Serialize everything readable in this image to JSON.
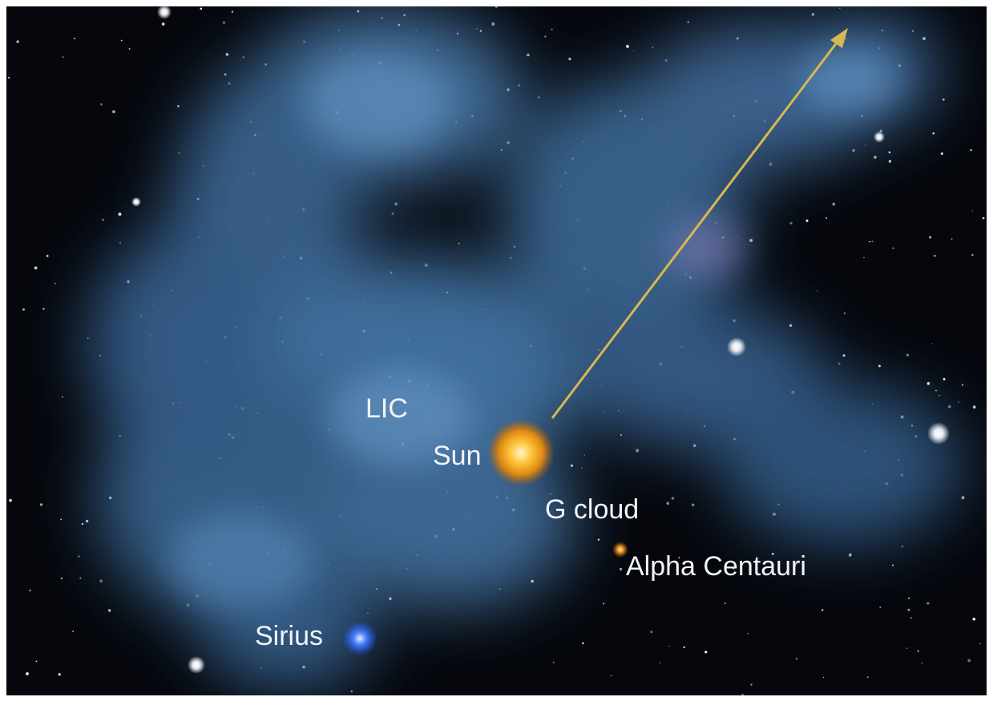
{
  "labels": {
    "lic": "LIC",
    "sun": "Sun",
    "g_cloud": "G cloud",
    "alpha_centauri": "Alpha Centauri",
    "sirius": "Sirius"
  }
}
